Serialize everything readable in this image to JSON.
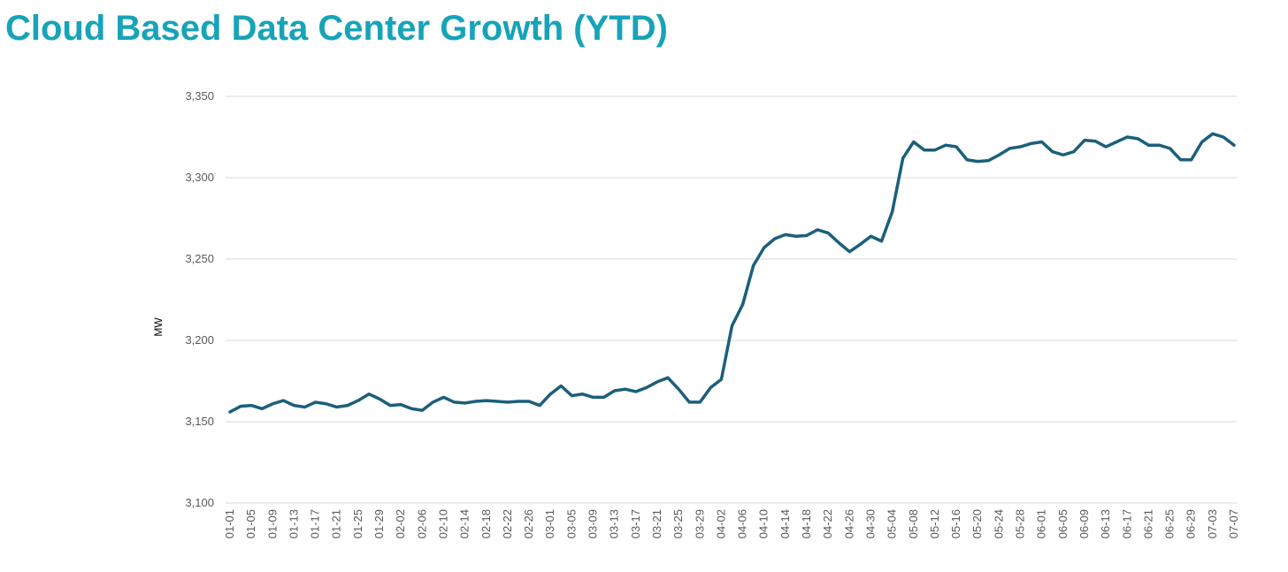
{
  "chart_data": {
    "type": "line",
    "title": "Cloud Based Data Center Growth (YTD)",
    "y_label": "MW",
    "categories": [
      "01-01",
      null,
      "01-05",
      null,
      "01-09",
      null,
      "01-13",
      null,
      "01-17",
      null,
      "01-21",
      null,
      "01-25",
      null,
      "01-29",
      null,
      "02-02",
      null,
      "02-06",
      null,
      "02-10",
      null,
      "02-14",
      null,
      "02-18",
      null,
      "02-22",
      null,
      "02-26",
      null,
      "03-01",
      null,
      "03-05",
      null,
      "03-09",
      null,
      "03-13",
      null,
      "03-17",
      null,
      "03-21",
      null,
      "03-25",
      null,
      "03-29",
      null,
      "04-02",
      null,
      "04-06",
      null,
      "04-10",
      null,
      "04-14",
      null,
      "04-18",
      null,
      "04-22",
      null,
      "04-26",
      null,
      "04-30",
      null,
      "05-04",
      null,
      "05-08",
      null,
      "05-12",
      null,
      "05-16",
      null,
      "05-20",
      null,
      "05-24",
      null,
      "05-28",
      null,
      "06-01",
      null,
      "06-05",
      null,
      "06-09",
      null,
      "06-13",
      null,
      "06-17",
      null,
      "06-21",
      null,
      "06-25",
      null,
      "06-29",
      null,
      "07-03",
      null,
      "07-07"
    ],
    "series": [
      {
        "name": "MW",
        "color": "#1b5f7c",
        "values": [
          3156,
          3159.5,
          3160,
          3158,
          3161,
          3163,
          3160,
          3159,
          3162,
          3161,
          3159,
          3160,
          3163,
          3167,
          3164,
          3160,
          3160.5,
          3158,
          3157,
          3162,
          3165,
          3162,
          3161.5,
          3162.5,
          3163,
          3162.5,
          3162,
          3162.5,
          3162.5,
          3160,
          3167,
          3172,
          3166,
          3167,
          3165,
          3165,
          3169,
          3170,
          3168.5,
          3171,
          3174.5,
          3177,
          3170,
          3162,
          3162,
          3171,
          3176,
          3209,
          3222,
          3246,
          3257,
          3262.5,
          3265,
          3264,
          3264.5,
          3268,
          3266,
          3260,
          3254.5,
          3259,
          3264,
          3261,
          3279,
          3312,
          3322,
          3317,
          3317,
          3320,
          3319,
          3311,
          3310,
          3310.5,
          3314,
          3318,
          3319,
          3321,
          3322,
          3316,
          3314,
          3316,
          3323,
          3322.5,
          3319,
          3322,
          3325,
          3324,
          3320,
          3320,
          3318,
          3311,
          3311,
          3322,
          3327,
          3325,
          3320
        ]
      }
    ],
    "ylim": [
      3100,
      3350
    ],
    "yticks": [
      {
        "value": 3100,
        "label": "3,100"
      },
      {
        "value": 3150,
        "label": "3,150"
      },
      {
        "value": 3200,
        "label": "3,200"
      },
      {
        "value": 3250,
        "label": "3,250"
      },
      {
        "value": 3300,
        "label": "3,300"
      },
      {
        "value": 3350,
        "label": "3,350"
      }
    ],
    "grid": true
  }
}
